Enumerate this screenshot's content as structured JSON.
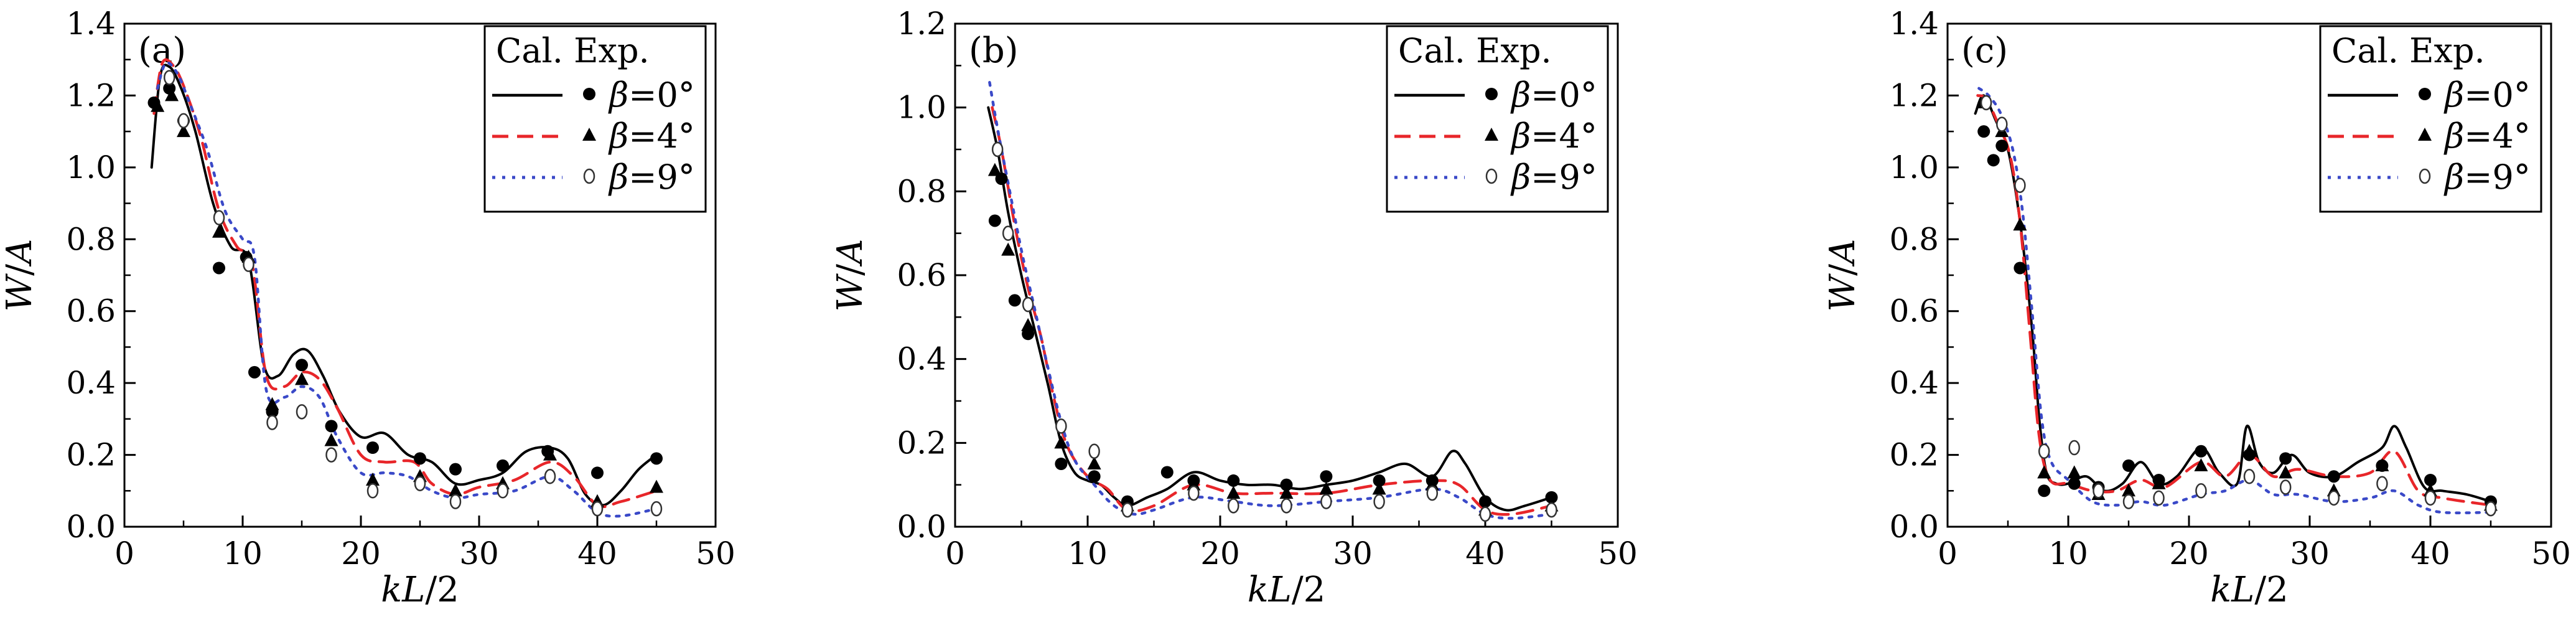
{
  "figure": {
    "legend_header": [
      "Cal.",
      "Exp."
    ],
    "styles": {
      "calc_colors": [
        "#000000",
        "#e8262a",
        "#3a49c8"
      ],
      "calc_dash": [
        "",
        "26,14",
        "5,11"
      ],
      "exp_markers": [
        "filled-circle",
        "filled-triangle",
        "open-circle"
      ]
    }
  },
  "chart_data": [
    {
      "type": "line",
      "panel_label": "(a)",
      "xlabel": "kL/2",
      "ylabel": "W/A",
      "xlim": [
        0,
        50
      ],
      "ylim": [
        0,
        1.4
      ],
      "xticks": [
        "0",
        "10",
        "20",
        "30",
        "40",
        "50"
      ],
      "yticks": [
        "0.0",
        "0.2",
        "0.4",
        "0.6",
        "0.8",
        "1.0",
        "1.2",
        "1.4"
      ],
      "legend_position": "top-right",
      "grid": false,
      "series": [
        {
          "name": "β=0°",
          "calc": {
            "x": [
              2.3,
              3.0,
              3.8,
              4.8,
              6.0,
              7.5,
              9.0,
              10.5,
              11.8,
              13.0,
              14.3,
              15.5,
              16.8,
              18.2,
              20.0,
              22.0,
              24.0,
              26.0,
              28.0,
              30.0,
              32.0,
              34.0,
              36.0,
              37.5,
              39.0,
              40.5,
              42.0,
              43.5,
              45.0
            ],
            "y": [
              1.0,
              1.25,
              1.28,
              1.22,
              1.1,
              0.9,
              0.78,
              0.74,
              0.45,
              0.42,
              0.48,
              0.49,
              0.42,
              0.32,
              0.25,
              0.26,
              0.2,
              0.18,
              0.12,
              0.13,
              0.15,
              0.21,
              0.22,
              0.19,
              0.09,
              0.06,
              0.1,
              0.16,
              0.2
            ]
          },
          "exp": {
            "x": [
              2.5,
              3.8,
              5.0,
              8.0,
              10.3,
              11.0,
              12.5,
              15.0,
              17.5,
              21.0,
              25.0,
              28.0,
              32.0,
              35.8,
              40.0,
              45.0
            ],
            "y": [
              1.18,
              1.22,
              1.13,
              0.72,
              0.75,
              0.43,
              0.32,
              0.45,
              0.28,
              0.22,
              0.19,
              0.16,
              0.17,
              0.21,
              0.15,
              0.19
            ]
          }
        },
        {
          "name": "β=4°",
          "calc": {
            "x": [
              2.5,
              3.2,
              4.2,
              5.2,
              6.5,
              8.0,
              9.5,
              10.8,
              12.0,
              13.5,
              15.0,
              16.5,
              18.0,
              20.0,
              22.0,
              24.5,
              26.0,
              28.0,
              30.0,
              33.0,
              36.0,
              38.0,
              40.0,
              42.0,
              45.0
            ],
            "y": [
              1.15,
              1.29,
              1.28,
              1.21,
              1.08,
              0.88,
              0.78,
              0.73,
              0.42,
              0.39,
              0.43,
              0.41,
              0.33,
              0.2,
              0.18,
              0.18,
              0.12,
              0.09,
              0.11,
              0.13,
              0.18,
              0.14,
              0.06,
              0.07,
              0.1
            ]
          },
          "exp": {
            "x": [
              2.8,
              4.0,
              5.0,
              8.0,
              10.5,
              12.5,
              15.0,
              17.5,
              21.0,
              25.0,
              28.0,
              32.0,
              36.0,
              40.0,
              45.0
            ],
            "y": [
              1.17,
              1.2,
              1.1,
              0.82,
              0.75,
              0.34,
              0.41,
              0.24,
              0.13,
              0.14,
              0.1,
              0.12,
              0.2,
              0.07,
              0.11
            ]
          }
        },
        {
          "name": "β=9°",
          "calc": {
            "x": [
              2.8,
              3.5,
              4.5,
              5.5,
              7.0,
              8.5,
              10.0,
              11.0,
              12.0,
              13.5,
              15.0,
              16.5,
              18.0,
              20.0,
              22.0,
              24.0,
              26.0,
              28.0,
              30.0,
              33.0,
              36.0,
              38.0,
              40.0,
              42.0,
              45.0
            ],
            "y": [
              1.22,
              1.29,
              1.26,
              1.18,
              1.05,
              0.88,
              0.8,
              0.75,
              0.38,
              0.36,
              0.39,
              0.36,
              0.25,
              0.15,
              0.15,
              0.14,
              0.1,
              0.08,
              0.09,
              0.1,
              0.14,
              0.1,
              0.04,
              0.03,
              0.05
            ]
          },
          "exp": {
            "x": [
              3.8,
              5.0,
              8.0,
              10.5,
              12.5,
              15.0,
              17.5,
              21.0,
              25.0,
              28.0,
              32.0,
              36.0,
              40.0,
              45.0
            ],
            "y": [
              1.25,
              1.13,
              0.86,
              0.73,
              0.29,
              0.32,
              0.2,
              0.1,
              0.12,
              0.07,
              0.1,
              0.14,
              0.05,
              0.05
            ]
          }
        }
      ]
    },
    {
      "type": "line",
      "panel_label": "(b)",
      "xlabel": "kL/2",
      "ylabel": "W/A",
      "xlim": [
        0,
        50
      ],
      "ylim": [
        0,
        1.2
      ],
      "xticks": [
        "0",
        "10",
        "20",
        "30",
        "40",
        "50"
      ],
      "yticks": [
        "0.0",
        "0.2",
        "0.4",
        "0.6",
        "0.8",
        "1.0",
        "1.2"
      ],
      "legend_position": "top-right",
      "grid": false,
      "series": [
        {
          "name": "β=0°",
          "calc": {
            "x": [
              2.5,
              3.2,
              4.0,
              5.0,
              6.0,
              7.0,
              8.0,
              9.0,
              10.0,
              11.0,
              12.0,
              13.0,
              14.5,
              16.0,
              18.0,
              20.0,
              22.0,
              24.0,
              26.0,
              28.0,
              30.0,
              32.0,
              34.0,
              36.0,
              37.5,
              38.5,
              40.0,
              41.5,
              43.0,
              45.0
            ],
            "y": [
              1.0,
              0.9,
              0.75,
              0.6,
              0.47,
              0.34,
              0.2,
              0.13,
              0.11,
              0.1,
              0.07,
              0.05,
              0.07,
              0.09,
              0.13,
              0.11,
              0.1,
              0.1,
              0.09,
              0.1,
              0.11,
              0.13,
              0.15,
              0.12,
              0.18,
              0.15,
              0.07,
              0.04,
              0.05,
              0.07
            ]
          },
          "exp": {
            "x": [
              3.0,
              3.5,
              4.5,
              5.5,
              8.0,
              10.5,
              13.0,
              16.0,
              18.0,
              21.0,
              25.0,
              28.0,
              32.0,
              36.0,
              40.0,
              45.0
            ],
            "y": [
              0.73,
              0.83,
              0.54,
              0.46,
              0.15,
              0.12,
              0.06,
              0.13,
              0.11,
              0.11,
              0.1,
              0.12,
              0.11,
              0.11,
              0.06,
              0.07
            ]
          }
        },
        {
          "name": "β=4°",
          "calc": {
            "x": [
              2.8,
              3.5,
              4.5,
              5.5,
              6.5,
              7.5,
              8.5,
              10.0,
              11.5,
              13.0,
              15.0,
              18.0,
              21.0,
              24.0,
              28.0,
              32.0,
              36.0,
              38.0,
              40.0,
              42.0,
              45.0
            ],
            "y": [
              1.0,
              0.9,
              0.72,
              0.57,
              0.45,
              0.3,
              0.19,
              0.12,
              0.09,
              0.04,
              0.05,
              0.1,
              0.08,
              0.08,
              0.08,
              0.1,
              0.11,
              0.1,
              0.04,
              0.03,
              0.05
            ]
          },
          "exp": {
            "x": [
              3.0,
              4.0,
              5.5,
              8.0,
              10.5,
              13.0,
              18.0,
              21.0,
              25.0,
              28.0,
              32.0,
              36.0,
              40.0,
              45.0
            ],
            "y": [
              0.85,
              0.66,
              0.48,
              0.2,
              0.15,
              0.05,
              0.1,
              0.08,
              0.08,
              0.09,
              0.09,
              0.1,
              0.04,
              0.05
            ]
          }
        },
        {
          "name": "β=9°",
          "calc": {
            "x": [
              2.6,
              3.2,
              4.0,
              5.0,
              6.0,
              7.0,
              8.0,
              9.0,
              10.5,
              12.0,
              13.5,
              15.0,
              18.0,
              21.0,
              24.0,
              28.0,
              32.0,
              36.0,
              38.0,
              40.0,
              42.0,
              45.0
            ],
            "y": [
              1.06,
              0.95,
              0.82,
              0.66,
              0.52,
              0.38,
              0.25,
              0.16,
              0.1,
              0.05,
              0.03,
              0.04,
              0.07,
              0.06,
              0.05,
              0.06,
              0.07,
              0.09,
              0.07,
              0.03,
              0.02,
              0.03
            ]
          },
          "exp": {
            "x": [
              3.2,
              4.0,
              5.5,
              8.0,
              10.5,
              13.0,
              18.0,
              21.0,
              25.0,
              28.0,
              32.0,
              36.0,
              40.0,
              45.0
            ],
            "y": [
              0.9,
              0.7,
              0.53,
              0.24,
              0.18,
              0.04,
              0.08,
              0.05,
              0.05,
              0.06,
              0.06,
              0.08,
              0.03,
              0.04
            ]
          }
        }
      ]
    },
    {
      "type": "line",
      "panel_label": "(c)",
      "xlabel": "kL/2",
      "ylabel": "W/A",
      "xlim": [
        0,
        50
      ],
      "ylim": [
        0,
        1.4
      ],
      "xticks": [
        "0",
        "10",
        "20",
        "30",
        "40",
        "50"
      ],
      "yticks": [
        "0.0",
        "0.2",
        "0.4",
        "0.6",
        "0.8",
        "1.0",
        "1.2",
        "1.4"
      ],
      "legend_position": "top-right",
      "grid": false,
      "series": [
        {
          "name": "β=0°",
          "calc": {
            "x": [
              2.3,
              3.0,
              4.0,
              5.0,
              6.0,
              7.0,
              7.6,
              8.2,
              9.0,
              10.0,
              11.5,
              13.0,
              14.5,
              16.0,
              17.5,
              19.0,
              21.0,
              22.5,
              24.0,
              24.8,
              25.8,
              27.0,
              28.5,
              30.0,
              32.0,
              34.0,
              36.0,
              37.0,
              38.0,
              39.5,
              41.0,
              43.0,
              45.0
            ],
            "y": [
              1.15,
              1.2,
              1.13,
              1.05,
              0.85,
              0.55,
              0.3,
              0.15,
              0.12,
              0.12,
              0.14,
              0.1,
              0.12,
              0.18,
              0.12,
              0.14,
              0.22,
              0.15,
              0.12,
              0.28,
              0.18,
              0.15,
              0.2,
              0.15,
              0.14,
              0.18,
              0.22,
              0.28,
              0.22,
              0.11,
              0.1,
              0.09,
              0.07
            ]
          },
          "exp": {
            "x": [
              3.0,
              3.8,
              4.5,
              6.0,
              8.0,
              10.5,
              12.5,
              15.0,
              17.5,
              21.0,
              25.0,
              28.0,
              32.0,
              36.0,
              40.0,
              45.0
            ],
            "y": [
              1.1,
              1.02,
              1.06,
              0.72,
              0.1,
              0.12,
              0.11,
              0.17,
              0.13,
              0.21,
              0.2,
              0.19,
              0.14,
              0.17,
              0.13,
              0.07
            ]
          }
        },
        {
          "name": "β=4°",
          "calc": {
            "x": [
              2.5,
              3.2,
              4.2,
              5.2,
              6.0,
              6.8,
              7.6,
              8.5,
              10.0,
              12.0,
              14.0,
              16.0,
              18.0,
              21.0,
              23.0,
              25.0,
              27.0,
              29.0,
              32.0,
              35.0,
              37.0,
              39.0,
              41.0,
              45.0
            ],
            "y": [
              1.2,
              1.19,
              1.12,
              1.03,
              0.85,
              0.55,
              0.25,
              0.13,
              0.12,
              0.1,
              0.1,
              0.13,
              0.11,
              0.18,
              0.14,
              0.2,
              0.14,
              0.16,
              0.14,
              0.15,
              0.21,
              0.1,
              0.08,
              0.06
            ]
          },
          "exp": {
            "x": [
              3.0,
              4.5,
              6.0,
              8.0,
              10.5,
              12.5,
              15.0,
              17.5,
              21.0,
              25.0,
              28.0,
              32.0,
              36.0,
              40.0,
              45.0
            ],
            "y": [
              1.18,
              1.1,
              0.84,
              0.15,
              0.15,
              0.09,
              0.1,
              0.12,
              0.17,
              0.21,
              0.15,
              0.1,
              0.17,
              0.1,
              0.06
            ]
          }
        },
        {
          "name": "β=9°",
          "calc": {
            "x": [
              2.6,
              3.4,
              4.4,
              5.4,
              6.2,
              7.0,
              7.8,
              8.6,
              10.0,
              12.0,
              14.0,
              16.0,
              18.0,
              21.0,
              23.0,
              25.0,
              27.0,
              29.0,
              32.0,
              35.0,
              37.0,
              39.0,
              41.0,
              45.0
            ],
            "y": [
              1.22,
              1.2,
              1.15,
              1.05,
              0.88,
              0.6,
              0.3,
              0.18,
              0.13,
              0.07,
              0.06,
              0.07,
              0.06,
              0.09,
              0.1,
              0.13,
              0.09,
              0.09,
              0.07,
              0.08,
              0.1,
              0.06,
              0.04,
              0.04
            ]
          },
          "exp": {
            "x": [
              3.2,
              4.5,
              6.0,
              8.0,
              10.5,
              12.5,
              15.0,
              17.5,
              21.0,
              25.0,
              28.0,
              32.0,
              36.0,
              40.0,
              45.0
            ],
            "y": [
              1.18,
              1.12,
              0.95,
              0.21,
              0.22,
              0.1,
              0.07,
              0.08,
              0.1,
              0.14,
              0.11,
              0.08,
              0.12,
              0.08,
              0.05
            ]
          }
        }
      ]
    }
  ]
}
